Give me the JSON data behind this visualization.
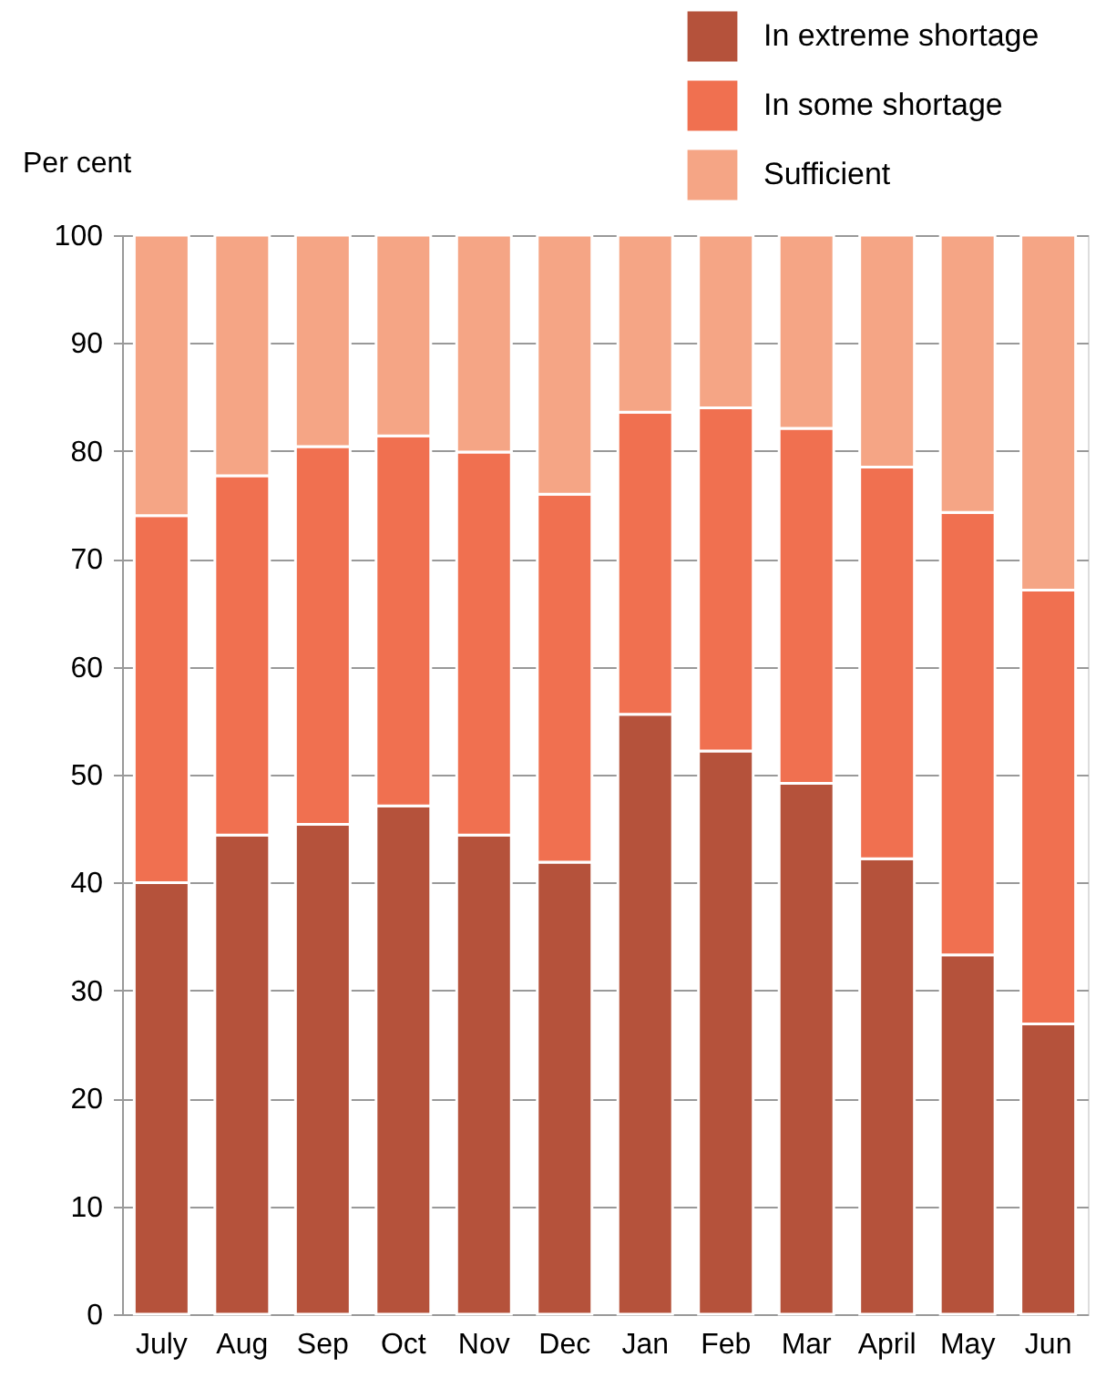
{
  "chart_data": {
    "type": "bar",
    "stacked": true,
    "ylabel": "Per cent",
    "categories": [
      "July",
      "Aug",
      "Sep",
      "Oct",
      "Nov",
      "Dec",
      "Jan",
      "Feb",
      "Mar",
      "April",
      "May",
      "Jun"
    ],
    "series": [
      {
        "name": "In extreme shortage",
        "color": "#b5523b",
        "values": [
          40,
          44.4,
          45.4,
          47.1,
          44.4,
          41.9,
          55.6,
          52.2,
          49.2,
          42.2,
          33.3,
          26.9
        ]
      },
      {
        "name": "In some shortage",
        "color": "#f07050",
        "values": [
          34,
          33.3,
          35,
          34.3,
          35.5,
          34.1,
          28,
          31.8,
          32.9,
          36.3,
          41,
          40.2
        ]
      },
      {
        "name": "Sufficient",
        "color": "#f5a585",
        "values": [
          26,
          22.3,
          19.6,
          18.6,
          20.1,
          24,
          16.4,
          16,
          17.9,
          21.5,
          25.7,
          32.9
        ]
      }
    ],
    "ylim": [
      0,
      100
    ],
    "yticks": [
      0,
      10,
      20,
      30,
      40,
      50,
      60,
      70,
      80,
      90,
      100
    ],
    "grid": "y",
    "legend": "top right"
  }
}
